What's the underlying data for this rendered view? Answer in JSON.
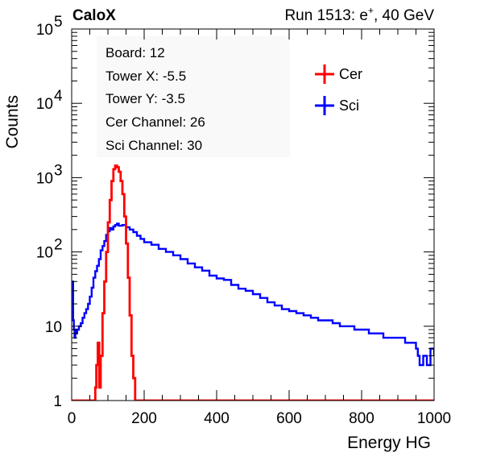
{
  "header": {
    "experiment": "CaloX",
    "run_prefix": "Run 1513: e",
    "run_particle_sup": "+",
    "run_suffix": ", 40 GeV"
  },
  "info_box": {
    "lines": [
      "Board: 12",
      "Tower X: -5.5",
      "Tower Y: -3.5",
      "Cer Channel: 26",
      "Sci Channel: 30"
    ]
  },
  "colors": {
    "cer": "#ff0000",
    "sci": "#0000ff"
  },
  "chart_data": {
    "type": "line",
    "title": "",
    "xlabel": "Energy HG",
    "ylabel": "Counts",
    "xlim": [
      0,
      1000
    ],
    "ylim": [
      1,
      100000
    ],
    "yscale": "log",
    "grid": false,
    "legend_position": "top-right",
    "x_ticks": [
      {
        "value": 0,
        "label": "0"
      },
      {
        "value": 200,
        "label": "200"
      },
      {
        "value": 400,
        "label": "400"
      },
      {
        "value": 600,
        "label": "600"
      },
      {
        "value": 800,
        "label": "800"
      },
      {
        "value": 1000,
        "label": "1000"
      }
    ],
    "y_ticks": [
      {
        "value": 1,
        "base": "1",
        "exp": ""
      },
      {
        "value": 10,
        "base": "10",
        "exp": ""
      },
      {
        "value": 100,
        "base": "10",
        "exp": "2"
      },
      {
        "value": 1000,
        "base": "10",
        "exp": "3"
      },
      {
        "value": 10000,
        "base": "10",
        "exp": "4"
      },
      {
        "value": 100000,
        "base": "10",
        "exp": "5"
      }
    ],
    "series": [
      {
        "name": "Cer",
        "color": "#ff0000",
        "x": [
          0,
          60,
          65,
          68,
          72,
          76,
          80,
          85,
          90,
          95,
          100,
          105,
          110,
          115,
          120,
          125,
          130,
          135,
          140,
          145,
          150,
          155,
          160,
          165,
          170,
          175,
          180,
          1000
        ],
        "y": [
          1,
          1,
          1.5,
          3,
          6,
          1.5,
          4,
          15,
          40,
          100,
          250,
          500,
          900,
          1300,
          1450,
          1380,
          1200,
          900,
          600,
          300,
          130,
          45,
          14,
          4,
          2,
          1,
          1,
          1
        ]
      },
      {
        "name": "Sci",
        "color": "#0000ff",
        "x": [
          2,
          4,
          6,
          8,
          10,
          12,
          15,
          20,
          25,
          30,
          35,
          40,
          45,
          50,
          55,
          60,
          65,
          70,
          75,
          80,
          85,
          90,
          95,
          100,
          105,
          110,
          115,
          120,
          125,
          130,
          140,
          150,
          160,
          170,
          180,
          190,
          200,
          220,
          240,
          260,
          280,
          300,
          320,
          340,
          360,
          380,
          400,
          420,
          440,
          460,
          480,
          500,
          520,
          540,
          560,
          580,
          600,
          620,
          640,
          660,
          680,
          700,
          720,
          740,
          760,
          780,
          800,
          820,
          840,
          860,
          880,
          900,
          920,
          940,
          950,
          955,
          960,
          970,
          980,
          990,
          1000
        ],
        "y": [
          40,
          12,
          9,
          7,
          9,
          8,
          9,
          10,
          11,
          13,
          15,
          17,
          20,
          25,
          33,
          45,
          55,
          65,
          80,
          105,
          120,
          140,
          170,
          190,
          210,
          200,
          220,
          230,
          240,
          225,
          230,
          215,
          200,
          185,
          165,
          150,
          135,
          125,
          110,
          100,
          90,
          80,
          70,
          62,
          56,
          48,
          44,
          42,
          36,
          32,
          30,
          27,
          24,
          21,
          19,
          17,
          16,
          15,
          14,
          13,
          12,
          12,
          11,
          10,
          10,
          9,
          9,
          8,
          8,
          7,
          7,
          7,
          6,
          6,
          5,
          4,
          3,
          4,
          3,
          5,
          4
        ]
      }
    ]
  }
}
